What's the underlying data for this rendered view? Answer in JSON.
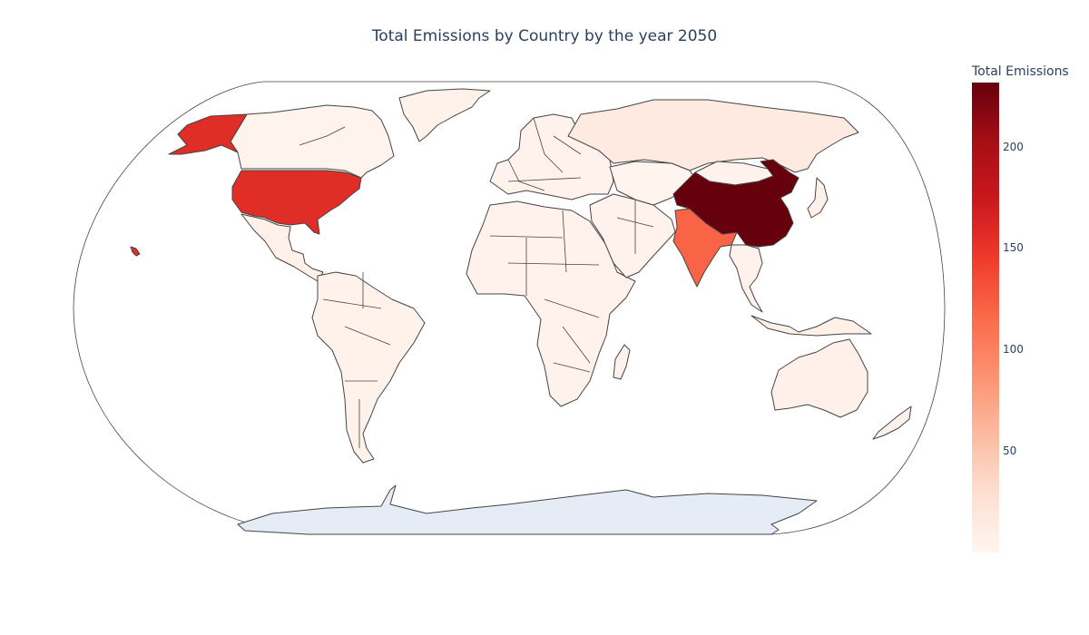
{
  "title": "Total Emissions by Country by the year 2050",
  "colorbar": {
    "title": "Total Emissions",
    "min": 0.5,
    "max": 232,
    "ticks": [
      {
        "value": 50,
        "label": "50"
      },
      {
        "value": 100,
        "label": "100"
      },
      {
        "value": 150,
        "label": "150"
      },
      {
        "value": 200,
        "label": "200"
      }
    ],
    "colors": [
      "#fff5f0",
      "#fee0d2",
      "#fcbba1",
      "#fc9272",
      "#fb6a4a",
      "#ef3b2c",
      "#cb181d",
      "#a50f15",
      "#67000d"
    ]
  },
  "colors": {
    "ocean": "#ffffff",
    "antarctica": "#e5ecf6",
    "border": "#444444"
  },
  "chart_data": {
    "type": "choropleth",
    "projection": "natural earth",
    "title": "Total Emissions by Country by the year 2050",
    "colorscale": "Reds",
    "color_label": "Total Emissions",
    "range": [
      0.5,
      232
    ],
    "countries": [
      {
        "name": "China",
        "value": 232
      },
      {
        "name": "United States",
        "value": 157
      },
      {
        "name": "India",
        "value": 120
      },
      {
        "name": "Russia",
        "value": 15
      },
      {
        "name": "Canada",
        "value": 3
      },
      {
        "name": "Greenland",
        "value": 5
      },
      {
        "name": "Brazil",
        "value": 5
      },
      {
        "name": "Australia",
        "value": 6
      },
      {
        "name": "Kazakhstan",
        "value": 2
      },
      {
        "name": "Mongolia",
        "value": 4
      },
      {
        "name": "Mexico",
        "value": 6
      },
      {
        "name": "Argentina",
        "value": 4
      },
      {
        "name": "Indonesia",
        "value": 8
      },
      {
        "name": "Japan",
        "value": 6
      }
    ],
    "default_value": 4,
    "missing_color": "#e5ecf6"
  }
}
